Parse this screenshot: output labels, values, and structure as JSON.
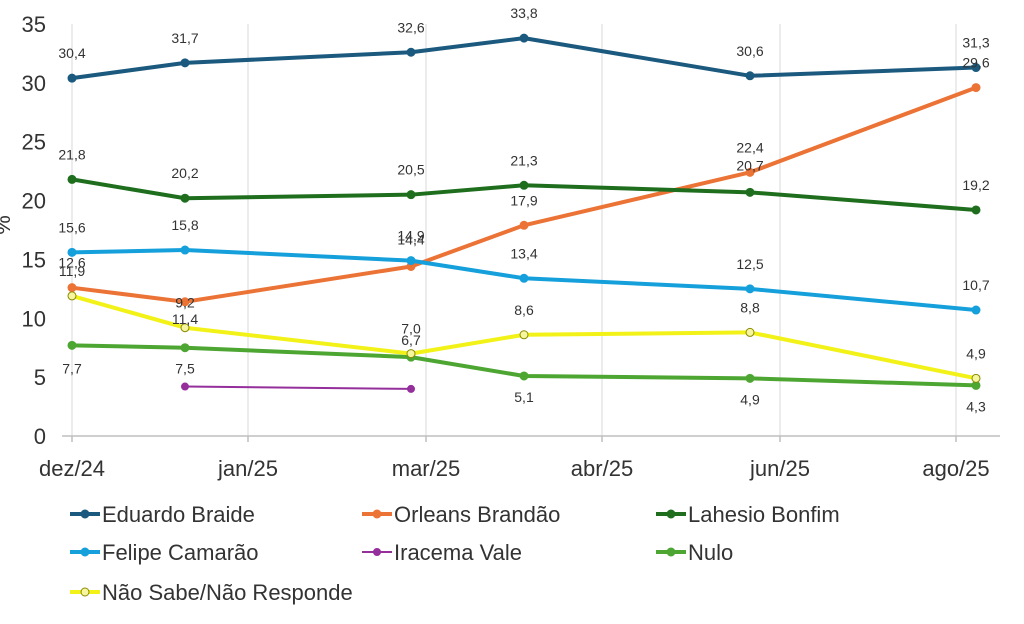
{
  "chart_data": {
    "type": "line",
    "ylabel": "%",
    "ylim": [
      0,
      35
    ],
    "yticks": [
      "0",
      "5",
      "10",
      "15",
      "20",
      "25",
      "30",
      "35"
    ],
    "grid": "vertical",
    "legend_position": "bottom",
    "x_tick_labels": [
      "dez/24",
      "jan/25",
      "mar/25",
      "abr/25",
      "jun/25",
      "ago/25"
    ],
    "series": [
      {
        "name": "Eduardo Braide",
        "color": "#1b5a7e",
        "marker": "filled",
        "x": [
          "2024-12",
          "2025-01",
          "2025-03",
          "2025-04",
          "2025-06",
          "2025-08"
        ],
        "values": [
          30.4,
          31.7,
          32.6,
          33.8,
          30.6,
          31.3
        ],
        "labels": [
          "30,4",
          "31,7",
          "32,6",
          "33,8",
          "30,6",
          "31,3"
        ]
      },
      {
        "name": "Orleans Brandão",
        "color": "#ec7336",
        "marker": "filled",
        "x": [
          "2024-12",
          "2025-01",
          "2025-03",
          "2025-04",
          "2025-06",
          "2025-08"
        ],
        "values": [
          12.6,
          11.4,
          14.4,
          17.9,
          22.4,
          29.6
        ],
        "labels": [
          "12,6",
          "11,4",
          "14,4",
          "17,9",
          "22,4",
          "29,6"
        ]
      },
      {
        "name": "Lahesio Bonfim",
        "color": "#1e6e1e",
        "marker": "filled",
        "x": [
          "2024-12",
          "2025-01",
          "2025-03",
          "2025-04",
          "2025-06",
          "2025-08"
        ],
        "values": [
          21.8,
          20.2,
          20.5,
          21.3,
          20.7,
          19.2
        ],
        "labels": [
          "21,8",
          "20,2",
          "20,5",
          "21,3",
          "20,7",
          "19,2"
        ]
      },
      {
        "name": "Felipe Camarão",
        "color": "#15a0dc",
        "marker": "filled",
        "x": [
          "2024-12",
          "2025-01",
          "2025-03",
          "2025-04",
          "2025-06",
          "2025-08"
        ],
        "values": [
          15.6,
          15.8,
          14.9,
          13.4,
          12.5,
          10.7
        ],
        "labels": [
          "15,6",
          "15,8",
          "14,9",
          "13,4",
          "12,5",
          "10,7"
        ]
      },
      {
        "name": "Iracema Vale",
        "color": "#942f9c",
        "marker": "filled",
        "x": [
          "2025-01",
          "2025-03"
        ],
        "values": [
          4.2,
          4.0
        ],
        "labels": [
          "",
          ""
        ]
      },
      {
        "name": "Nulo",
        "color": "#4da632",
        "marker": "filled",
        "x": [
          "2024-12",
          "2025-01",
          "2025-03",
          "2025-04",
          "2025-06",
          "2025-08"
        ],
        "values": [
          7.7,
          7.5,
          6.7,
          5.1,
          4.9,
          4.3
        ],
        "labels": [
          "7,7",
          "7,5",
          "6,7",
          "5,1",
          "4,9",
          "4,3"
        ]
      },
      {
        "name": "Não Sabe/Não Responde",
        "color": "#f2f218",
        "marker": "hollow",
        "x": [
          "2024-12",
          "2025-01",
          "2025-03",
          "2025-04",
          "2025-06",
          "2025-08"
        ],
        "values": [
          11.9,
          9.2,
          7.0,
          8.6,
          8.8,
          4.9
        ],
        "labels": [
          "11,9",
          "9,2",
          "7,0",
          "8,6",
          "8,8",
          "4,9"
        ]
      }
    ]
  }
}
